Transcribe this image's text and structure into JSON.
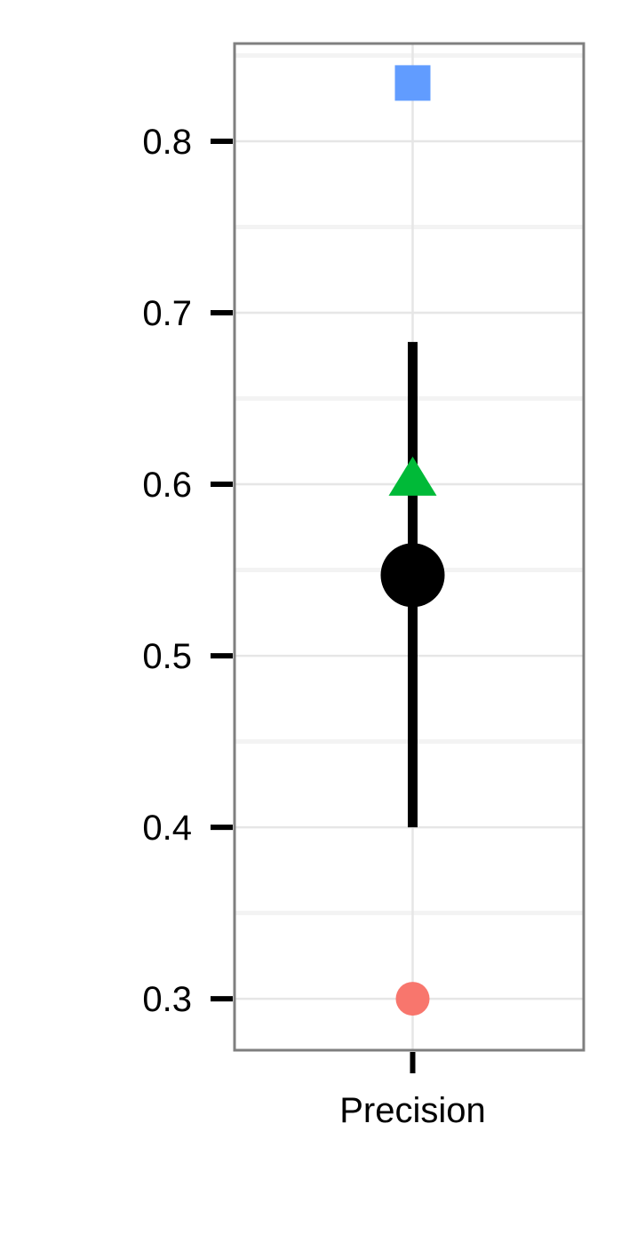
{
  "chart_data": {
    "type": "scatter",
    "title": "",
    "xlabel": "",
    "ylabel": "",
    "categories": [
      "Precision"
    ],
    "ylim": [
      0.27,
      0.857
    ],
    "yticks": [
      "0.3",
      "0.4",
      "0.5",
      "0.6",
      "0.7",
      "0.8"
    ],
    "grid": true,
    "legend": "none",
    "estimate": {
      "category": "Precision",
      "value": 0.547,
      "lower": 0.4,
      "upper": 0.683,
      "shape": "circle",
      "color": "#000000"
    },
    "points": [
      {
        "category": "Precision",
        "value": 0.834,
        "shape": "square",
        "color": "#619CFF"
      },
      {
        "category": "Precision",
        "value": 0.602,
        "shape": "triangle",
        "color": "#00BA38"
      },
      {
        "category": "Precision",
        "value": 0.3,
        "shape": "circle",
        "color": "#F8766D"
      }
    ]
  }
}
